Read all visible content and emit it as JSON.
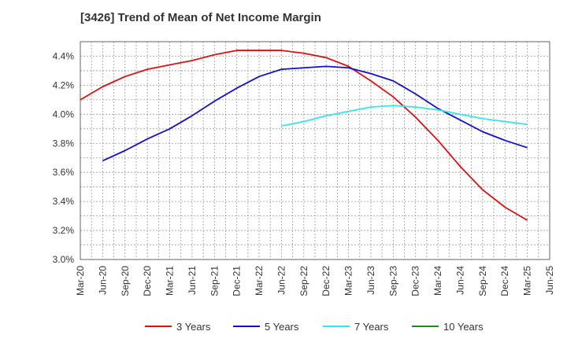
{
  "chart_data": {
    "type": "line",
    "title": "[3426]  Trend of Mean of Net Income Margin",
    "xlabel": "",
    "ylabel": "",
    "ylim": [
      3.0,
      4.5
    ],
    "yticks": [
      3.0,
      3.2,
      3.4,
      3.6,
      3.8,
      4.0,
      4.2,
      4.4
    ],
    "ytick_labels": [
      "3.0%",
      "3.2%",
      "3.4%",
      "3.6%",
      "3.8%",
      "4.0%",
      "4.2%",
      "4.4%"
    ],
    "categories": [
      "Mar-20",
      "Jun-20",
      "Sep-20",
      "Dec-20",
      "Mar-21",
      "Jun-21",
      "Sep-21",
      "Dec-21",
      "Mar-22",
      "Jun-22",
      "Sep-22",
      "Dec-22",
      "Mar-23",
      "Jun-23",
      "Sep-23",
      "Dec-23",
      "Mar-24",
      "Jun-24",
      "Sep-24",
      "Dec-24",
      "Mar-25",
      "Jun-25"
    ],
    "grid": true,
    "legend": "bottom",
    "series": [
      {
        "name": "3 Years",
        "color": "#dd1111",
        "values": [
          4.1,
          4.19,
          4.26,
          4.31,
          4.34,
          4.37,
          4.41,
          4.44,
          4.44,
          4.44,
          4.42,
          4.39,
          4.33,
          4.23,
          4.12,
          3.98,
          3.82,
          3.64,
          3.48,
          3.36,
          3.27,
          null
        ]
      },
      {
        "name": "5 Years",
        "color": "#1111cc",
        "values": [
          null,
          3.68,
          3.75,
          3.83,
          3.9,
          3.99,
          4.09,
          4.18,
          4.26,
          4.31,
          4.32,
          4.33,
          4.32,
          4.28,
          4.23,
          4.14,
          4.04,
          3.96,
          3.88,
          3.82,
          3.77,
          null
        ]
      },
      {
        "name": "7 Years",
        "color": "#33e6ee",
        "values": [
          null,
          null,
          null,
          null,
          null,
          null,
          null,
          null,
          null,
          3.92,
          3.95,
          3.99,
          4.02,
          4.05,
          4.06,
          4.05,
          4.03,
          4.0,
          3.97,
          3.95,
          3.93,
          null
        ]
      },
      {
        "name": "10 Years",
        "color": "#228822",
        "values": [
          null,
          null,
          null,
          null,
          null,
          null,
          null,
          null,
          null,
          null,
          null,
          null,
          null,
          null,
          null,
          null,
          null,
          null,
          null,
          null,
          null,
          null
        ]
      }
    ]
  }
}
